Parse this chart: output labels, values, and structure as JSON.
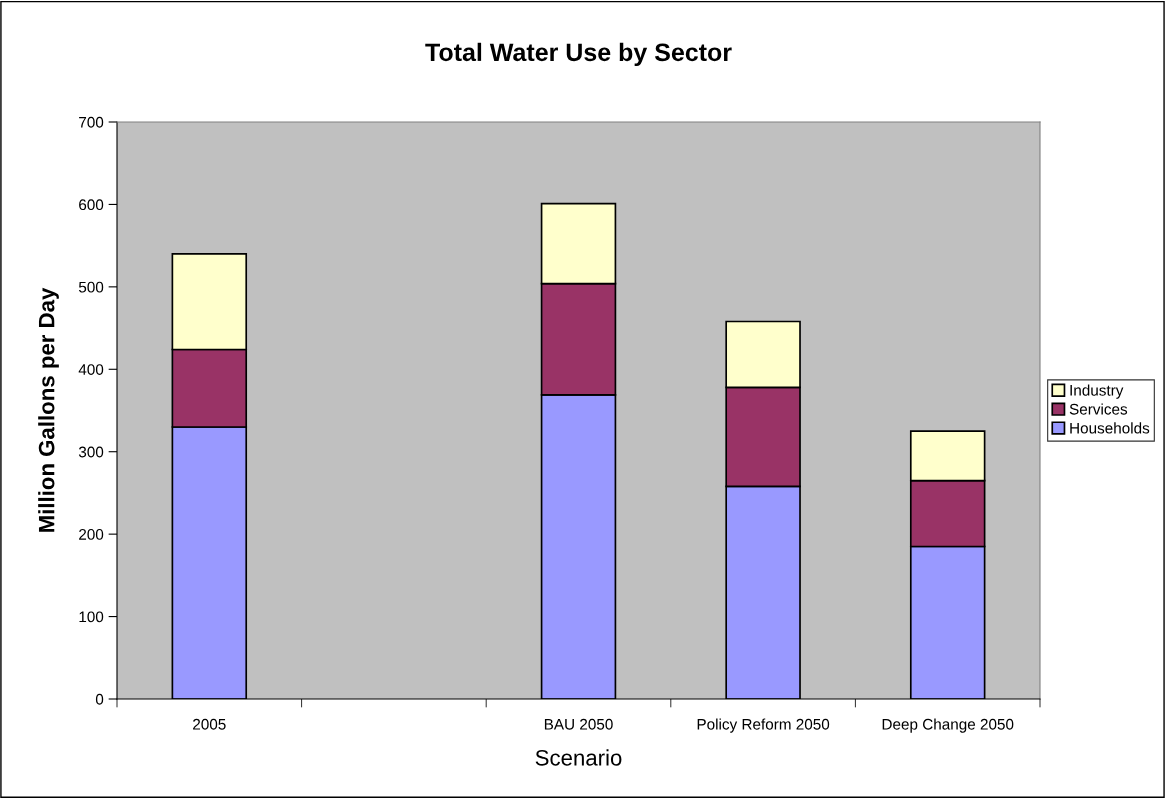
{
  "chart_data": {
    "type": "bar",
    "stacked": true,
    "title": "Total Water Use by Sector",
    "xlabel": "Scenario",
    "ylabel": "Million Gallons per Day",
    "categories": [
      "2005",
      null,
      "BAU 2050",
      "Policy Reform 2050",
      "Deep Change 2050"
    ],
    "series": [
      {
        "name": "Households",
        "color": "#9999ff",
        "values": [
          330,
          null,
          369,
          258,
          185
        ]
      },
      {
        "name": "Services",
        "color": "#993366",
        "values": [
          94,
          null,
          135,
          120,
          80
        ]
      },
      {
        "name": "Industry",
        "color": "#ffffcc",
        "values": [
          116,
          null,
          97,
          80,
          60
        ]
      }
    ],
    "ylim": [
      0,
      700
    ],
    "yticks": [
      0,
      100,
      200,
      300,
      400,
      500,
      600,
      700
    ],
    "grid": false,
    "legend": "right"
  }
}
